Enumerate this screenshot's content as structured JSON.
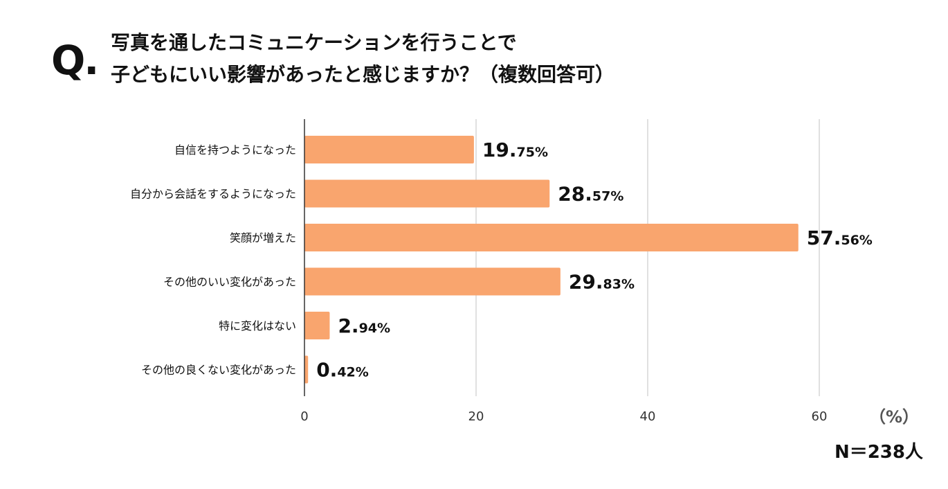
{
  "question": {
    "mark": "Q.",
    "line1": "写真を通したコミュニケーションを行うことで",
    "line2": "子どもにいい影響があったと感じますか？（複数回答可）"
  },
  "sample_size": "N＝238人",
  "colors": {
    "bar": "#F9A56E",
    "grid": "#cccccc",
    "axis": "#333333",
    "tick_text": "#333333",
    "label_text": "#111111"
  },
  "chart_data": {
    "type": "bar",
    "orientation": "horizontal",
    "categories": [
      "自信を持つようになった",
      "自分から会話をするようになった",
      "笑顔が増えた",
      "その他のいい変化があった",
      "特に変化はない",
      "その他の良くない変化があった"
    ],
    "values": [
      19.75,
      28.57,
      57.56,
      29.83,
      2.94,
      0.42
    ],
    "data_labels": [
      {
        "int": "19.",
        "dec": "75%"
      },
      {
        "int": "28.",
        "dec": "57%"
      },
      {
        "int": "57.",
        "dec": "56%"
      },
      {
        "int": "29.",
        "dec": "83%"
      },
      {
        "int": "2.",
        "dec": "94%"
      },
      {
        "int": "0.",
        "dec": "42%"
      }
    ],
    "xlim": [
      0,
      60
    ],
    "xticks": [
      0,
      20,
      40,
      60
    ],
    "xlabel": "（%）",
    "grid": true,
    "legend": false
  }
}
